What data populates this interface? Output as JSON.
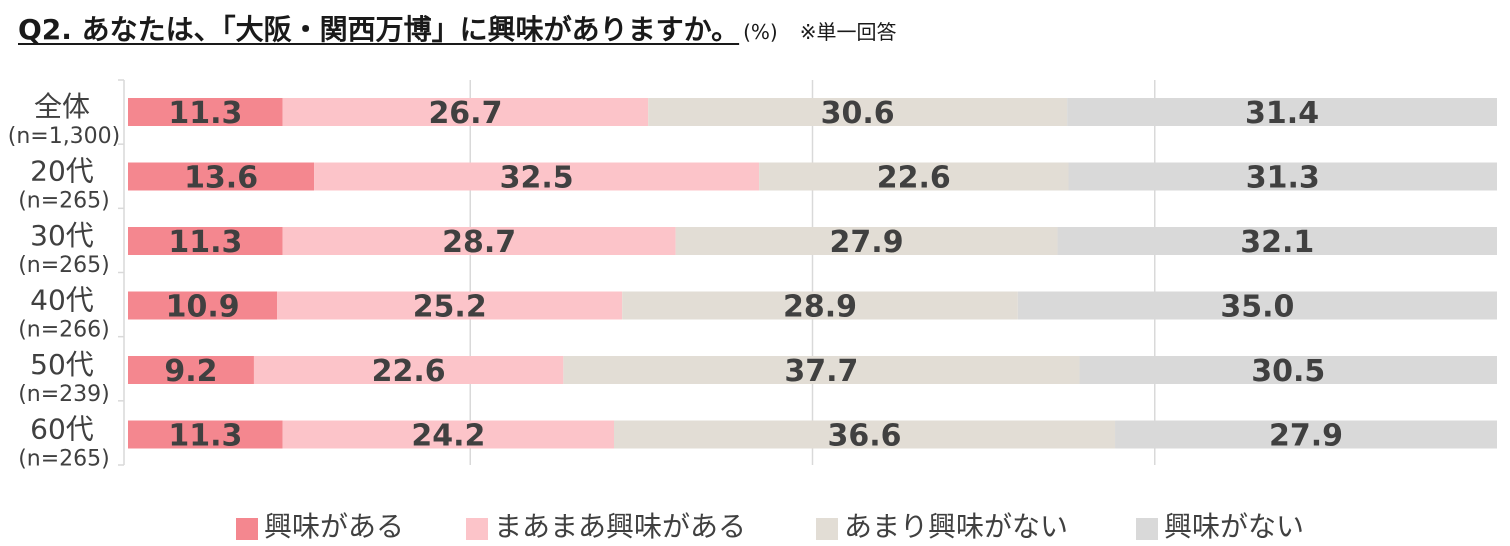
{
  "title": "Q2. あなたは、「大阪・関西万博」に興味がありますか。",
  "unit": "(%)",
  "note": "※単一回答",
  "colors": {
    "series": [
      "#f4878f",
      "#fcc4c9",
      "#e2ddd5",
      "#d9d9d9"
    ],
    "grid": "#d9d9d9",
    "label": "#404040"
  },
  "chart_data": {
    "type": "bar",
    "orientation": "horizontal",
    "stacked": true,
    "categories": [
      "全体",
      "20代",
      "30代",
      "40代",
      "50代",
      "60代"
    ],
    "sample_sizes": [
      "(n=1,300)",
      "(n=265)",
      "(n=265)",
      "(n=266)",
      "(n=239)",
      "(n=265)"
    ],
    "series": [
      {
        "name": "興味がある",
        "values": [
          11.3,
          13.6,
          11.3,
          10.9,
          9.2,
          11.3
        ]
      },
      {
        "name": "まあまあ興味がある",
        "values": [
          26.7,
          32.5,
          28.7,
          25.2,
          22.6,
          24.2
        ]
      },
      {
        "name": "あまり興味がない",
        "values": [
          30.6,
          22.6,
          27.9,
          28.9,
          37.7,
          36.6
        ]
      },
      {
        "name": "興味がない",
        "values": [
          31.4,
          31.3,
          32.1,
          35.0,
          30.5,
          27.9
        ]
      }
    ],
    "xlim": [
      0,
      100
    ],
    "grid": true,
    "legend_position": "bottom"
  }
}
